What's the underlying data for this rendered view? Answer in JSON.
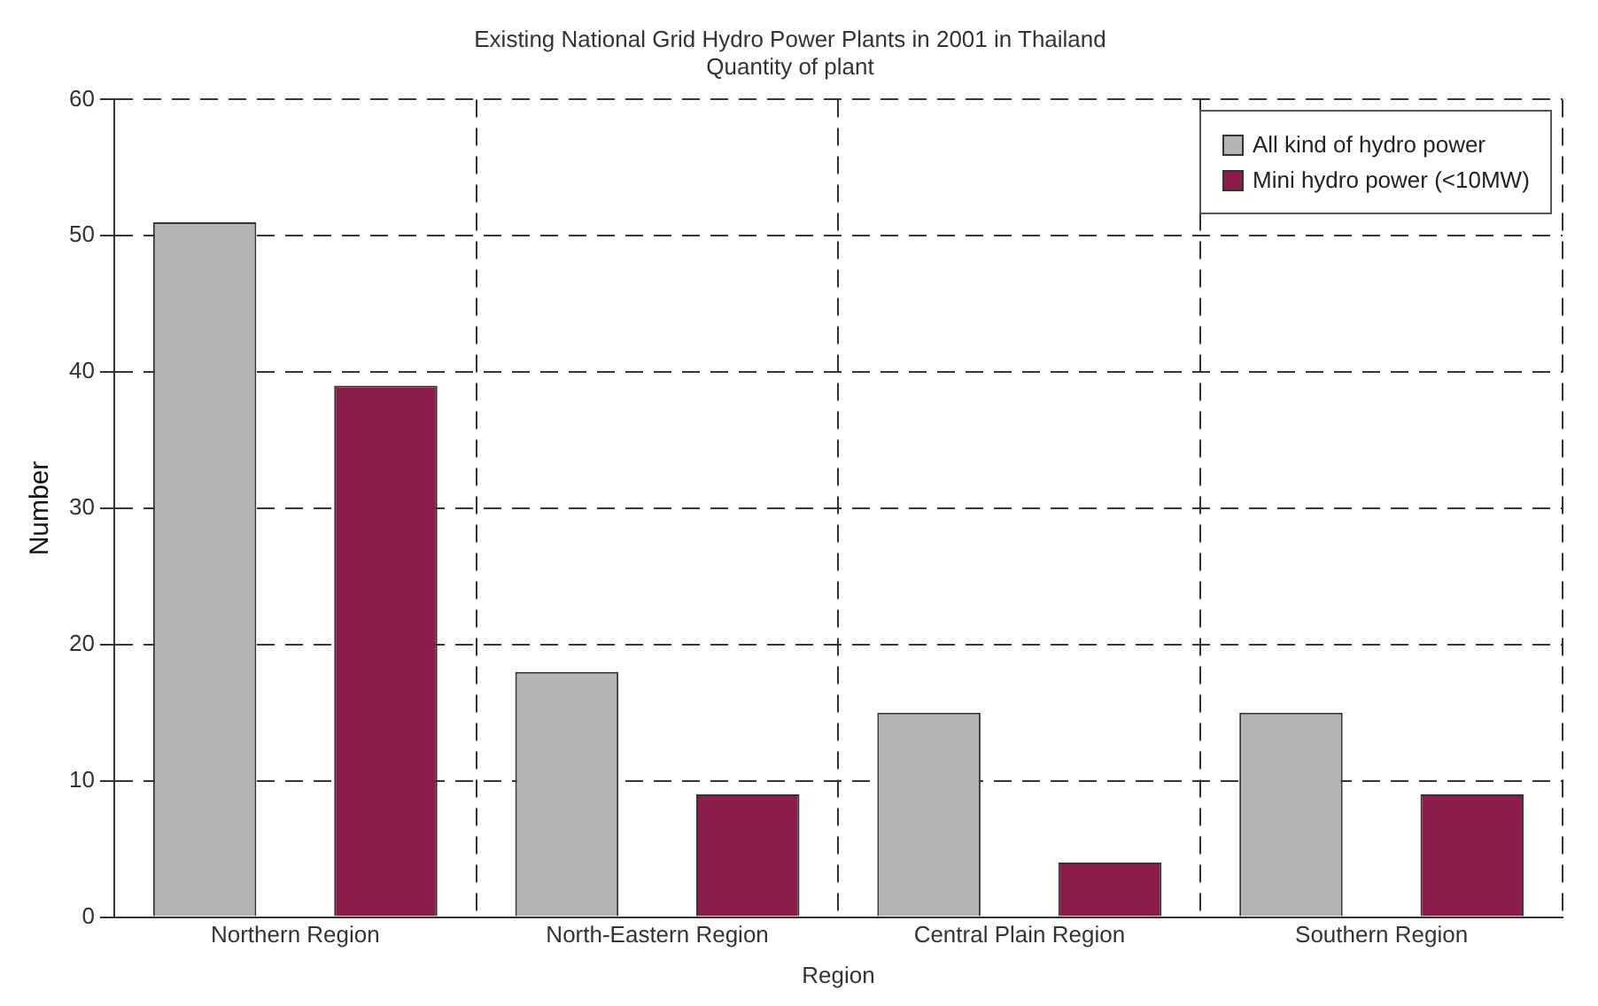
{
  "chart_data": {
    "type": "bar",
    "title": "Existing National Grid Hydro Power Plants in 2001 in Thailand",
    "subtitle": "Quantity of plant",
    "xlabel": "Region",
    "ylabel": "Number",
    "categories": [
      "Northern Region",
      "North-Eastern Region",
      "Central Plain Region",
      "Southern Region"
    ],
    "series": [
      {
        "name": "All kind of hydro power",
        "color": "#b4b4b4",
        "values": [
          51,
          18,
          15,
          15
        ]
      },
      {
        "name": "Mini hydro power (<10MW)",
        "color": "#8b1c4c",
        "values": [
          39,
          9,
          4,
          9
        ]
      }
    ],
    "ylim": [
      0,
      60
    ],
    "yticks": [
      0,
      10,
      20,
      30,
      40,
      50,
      60
    ],
    "grid": true,
    "line_style": "dashed",
    "legend": "top right"
  }
}
